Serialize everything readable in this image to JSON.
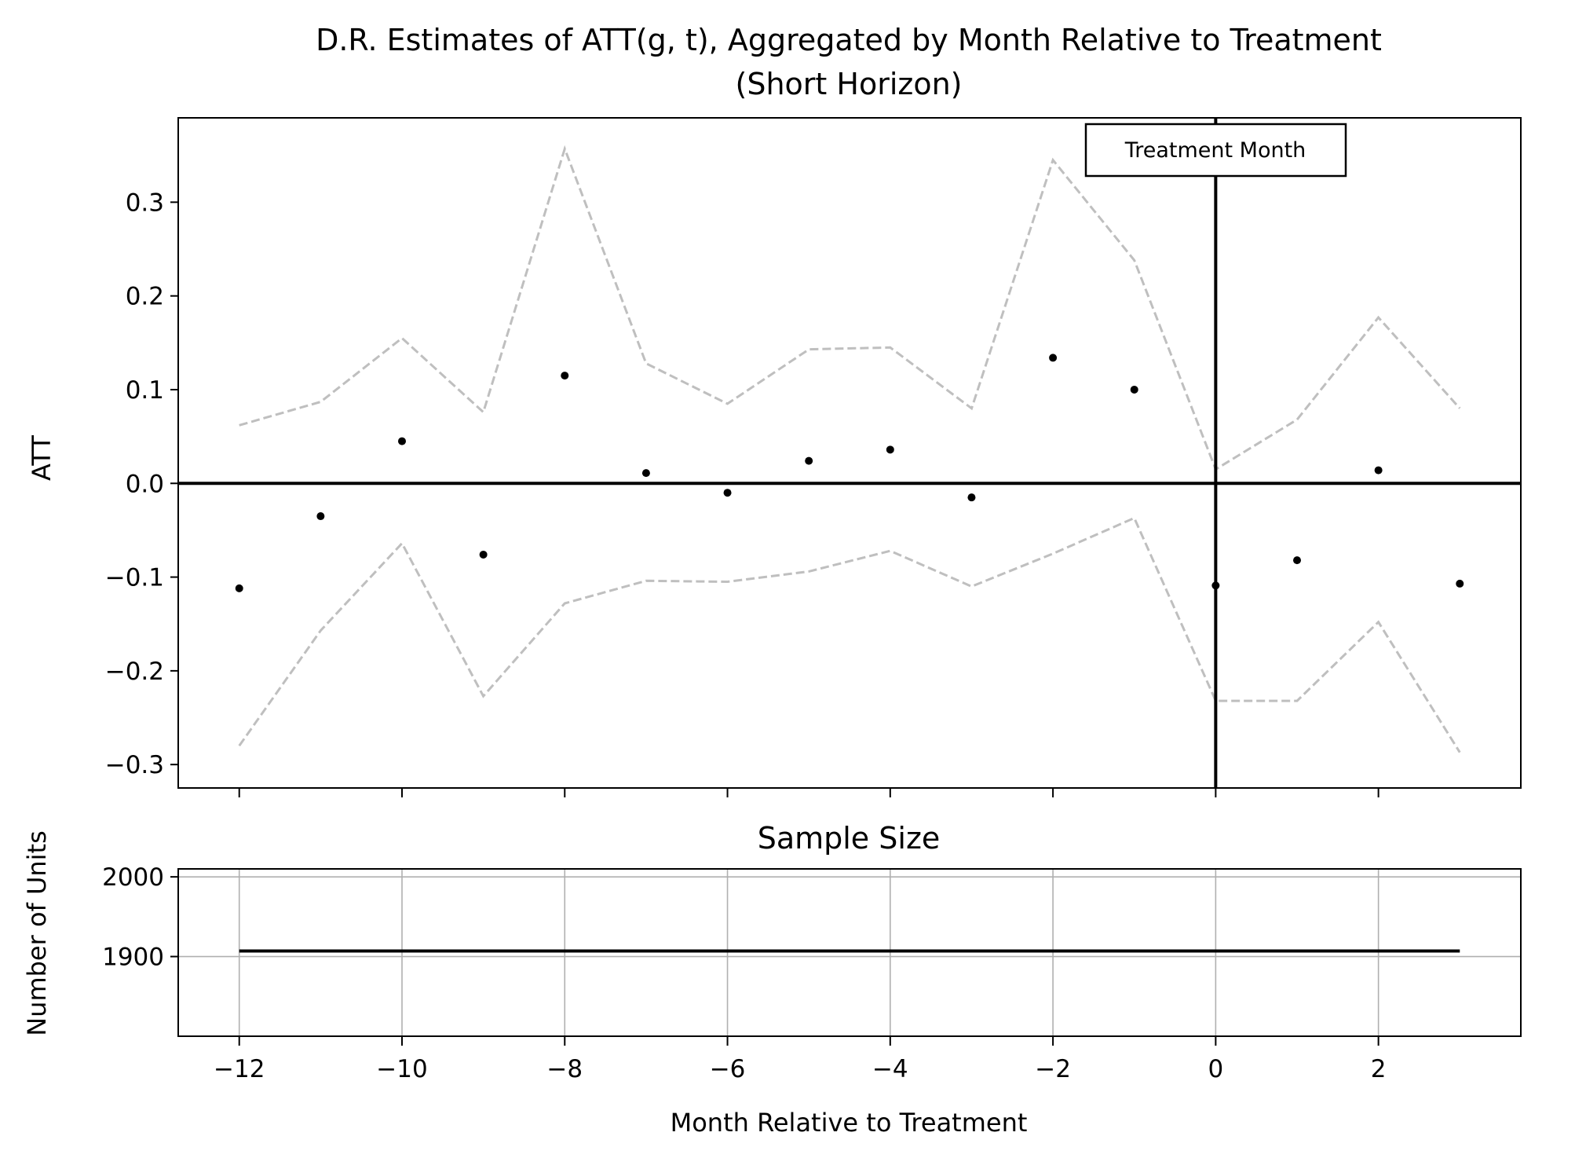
{
  "chart_data": [
    {
      "type": "scatter",
      "title": "D.R. Estimates of ATT(g, t), Aggregated by Month Relative to Treatment",
      "subtitle": "(Short Horizon)",
      "xlabel": "",
      "ylabel": "ATT",
      "xlim": [
        -12.75,
        3.75
      ],
      "ylim": [
        -0.325,
        0.39
      ],
      "y_ticks": [
        -0.3,
        -0.2,
        -0.1,
        0.0,
        0.1,
        0.2,
        0.3
      ],
      "y_tick_labels": [
        "−0.3",
        "−0.2",
        "−0.1",
        "0.0",
        "0.1",
        "0.2",
        "0.3"
      ],
      "x": [
        -12,
        -11,
        -10,
        -9,
        -8,
        -7,
        -6,
        -5,
        -4,
        -3,
        -2,
        -1,
        0,
        1,
        2,
        3
      ],
      "series": [
        {
          "values": [
            -0.112,
            -0.035,
            0.045,
            -0.076,
            0.115,
            0.011,
            -0.01,
            0.024,
            0.036,
            -0.015,
            0.134,
            0.1,
            -0.109,
            -0.082,
            0.014,
            -0.107
          ]
        },
        {
          "values": [
            0.062,
            0.087,
            0.155,
            0.076,
            0.357,
            0.128,
            0.085,
            0.143,
            0.145,
            0.08,
            0.345,
            0.238,
            0.015,
            0.068,
            0.177,
            0.08
          ]
        },
        {
          "values": [
            -0.28,
            -0.157,
            -0.064,
            -0.227,
            -0.128,
            -0.104,
            -0.105,
            -0.094,
            -0.072,
            -0.11,
            -0.075,
            -0.037,
            -0.232,
            -0.232,
            -0.148,
            -0.287
          ]
        }
      ],
      "reference_lines": {
        "horizontal_y": 0.0,
        "vertical_x": 0
      },
      "annotation": "Treatment Month",
      "grid": false,
      "colors": {
        "points": "#000000",
        "ci": "#bfbfbf",
        "reference": "#000000"
      }
    },
    {
      "type": "line",
      "title": "Sample Size",
      "xlabel": "Month Relative to Treatment",
      "ylabel": "Number of Units",
      "xlim": [
        -12.75,
        3.75
      ],
      "ylim": [
        1800,
        2010
      ],
      "x_ticks": [
        -12,
        -10,
        -8,
        -6,
        -4,
        -2,
        0,
        2
      ],
      "x_tick_labels": [
        "−12",
        "−10",
        "−8",
        "−6",
        "−4",
        "−2",
        "0",
        "2"
      ],
      "y_ticks": [
        1900,
        2000
      ],
      "y_tick_labels": [
        "1900",
        "2000"
      ],
      "x": [
        -12,
        3
      ],
      "series": [
        {
          "values": [
            1907,
            1907
          ]
        }
      ],
      "grid": true,
      "colors": {
        "line": "#000000",
        "grid": "#b0b0b0"
      }
    }
  ]
}
